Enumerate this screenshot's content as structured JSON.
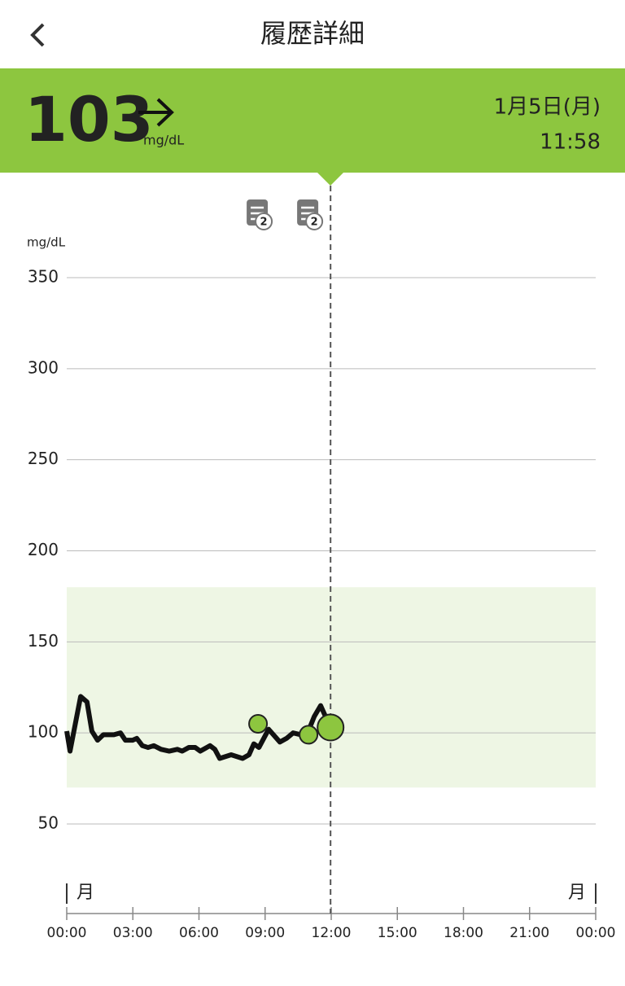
{
  "header": {
    "title": "履歴詳細"
  },
  "reading": {
    "value": 103,
    "unit": "mg/dL",
    "date": "1月5日(月)",
    "time": "11:58"
  },
  "chart_data": {
    "type": "line",
    "y_label": "mg/dL",
    "xlim": [
      0,
      24
    ],
    "xticks": [
      {
        "value": 0,
        "label": "00:00"
      },
      {
        "value": 3,
        "label": "03:00"
      },
      {
        "value": 6,
        "label": "06:00"
      },
      {
        "value": 9,
        "label": "09:00"
      },
      {
        "value": 12,
        "label": "12:00"
      },
      {
        "value": 15,
        "label": "15:00"
      },
      {
        "value": 18,
        "label": "18:00"
      },
      {
        "value": 21,
        "label": "21:00"
      },
      {
        "value": 24,
        "label": "00:00"
      }
    ],
    "ylim": [
      50,
      350
    ],
    "yticks": [
      50,
      100,
      150,
      200,
      250,
      300,
      350
    ],
    "grid": true,
    "target_range": [
      70,
      180
    ],
    "day_labels": [
      "月",
      "月"
    ],
    "series": [
      {
        "name": "glucose",
        "color": "#111111",
        "x": [
          0,
          0.15,
          0.63,
          0.92,
          1.14,
          1.4,
          1.66,
          2.14,
          2.44,
          2.66,
          2.99,
          3.18,
          3.43,
          3.69,
          3.95,
          4.28,
          4.65,
          5.02,
          5.24,
          5.54,
          5.83,
          6.06,
          6.5,
          6.72,
          6.94,
          7.46,
          7.98,
          8.27,
          8.49,
          8.72,
          9.16,
          9.67,
          9.97,
          10.27,
          10.63,
          10.93,
          11.23,
          11.52,
          11.89
        ],
        "values": [
          101,
          90,
          120,
          117,
          101,
          96,
          99,
          99,
          100,
          96,
          96,
          97,
          93,
          92,
          93,
          91,
          90,
          91,
          90,
          92,
          92,
          90,
          93,
          91,
          86,
          88,
          86,
          88,
          94,
          92,
          102,
          95,
          97,
          100,
          99,
          100,
          109,
          115,
          105
        ]
      },
      {
        "name": "scans",
        "color": "#8dc63f",
        "x": [
          8.68,
          10.97,
          11.97
        ],
        "values": [
          105,
          99,
          103
        ]
      }
    ],
    "notes": [
      {
        "x": 8.68,
        "count": 2
      },
      {
        "x": 10.97,
        "count": 2
      }
    ]
  }
}
